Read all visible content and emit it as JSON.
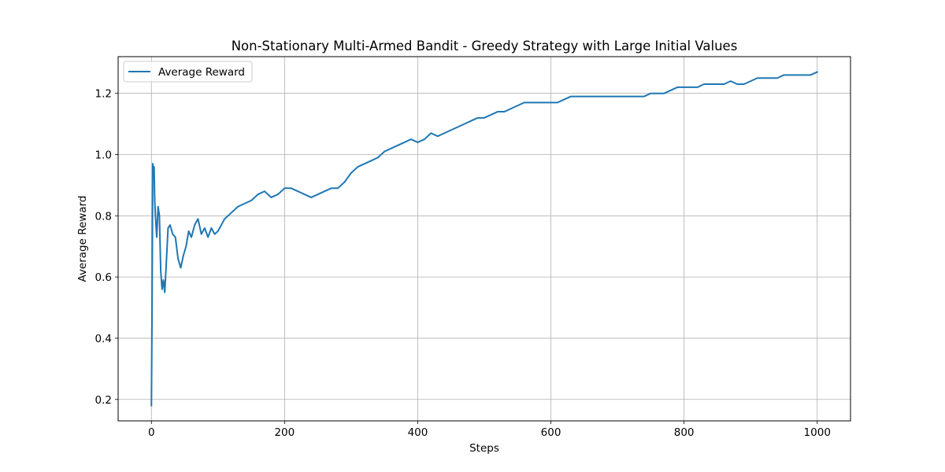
{
  "chart_data": {
    "type": "line",
    "title": "Non-Stationary Multi-Armed Bandit - Greedy Strategy with Large Initial Values",
    "xlabel": "Steps",
    "ylabel": "Average Reward",
    "xlim": [
      -50,
      1050
    ],
    "ylim": [
      0.13,
      1.32
    ],
    "xticks": [
      0,
      200,
      400,
      600,
      800,
      1000
    ],
    "yticks": [
      0.2,
      0.4,
      0.6,
      0.8,
      1.0,
      1.2
    ],
    "xtick_labels": [
      "0",
      "200",
      "400",
      "600",
      "800",
      "1000"
    ],
    "ytick_labels": [
      "0.2",
      "0.4",
      "0.6",
      "0.8",
      "1.0",
      "1.2"
    ],
    "grid": true,
    "legend_position": "top-left",
    "colors": {
      "series": "#1f77b4",
      "grid": "#b0b0b0",
      "axes": "#000000"
    },
    "series": [
      {
        "name": "Average Reward",
        "x": [
          0,
          1,
          2,
          3,
          4,
          5,
          6,
          8,
          10,
          12,
          14,
          16,
          18,
          20,
          22,
          25,
          28,
          32,
          36,
          40,
          44,
          48,
          52,
          56,
          60,
          65,
          70,
          75,
          80,
          85,
          90,
          95,
          100,
          110,
          120,
          130,
          140,
          150,
          160,
          170,
          180,
          190,
          200,
          210,
          220,
          230,
          240,
          250,
          260,
          270,
          280,
          290,
          300,
          310,
          320,
          330,
          340,
          350,
          360,
          370,
          380,
          390,
          400,
          410,
          420,
          430,
          440,
          450,
          460,
          470,
          480,
          490,
          500,
          510,
          520,
          530,
          540,
          550,
          560,
          570,
          580,
          590,
          600,
          610,
          620,
          630,
          640,
          650,
          660,
          670,
          680,
          690,
          700,
          710,
          720,
          730,
          740,
          750,
          760,
          770,
          780,
          790,
          800,
          810,
          820,
          830,
          840,
          850,
          860,
          870,
          880,
          890,
          900,
          910,
          920,
          930,
          940,
          950,
          960,
          970,
          980,
          990,
          1000
        ],
        "y": [
          0.18,
          0.5,
          0.97,
          0.95,
          0.96,
          0.85,
          0.8,
          0.73,
          0.83,
          0.8,
          0.62,
          0.56,
          0.59,
          0.55,
          0.63,
          0.76,
          0.77,
          0.74,
          0.73,
          0.66,
          0.63,
          0.67,
          0.7,
          0.75,
          0.73,
          0.77,
          0.79,
          0.74,
          0.76,
          0.73,
          0.76,
          0.74,
          0.75,
          0.79,
          0.81,
          0.83,
          0.84,
          0.85,
          0.87,
          0.88,
          0.86,
          0.87,
          0.89,
          0.89,
          0.88,
          0.87,
          0.86,
          0.87,
          0.88,
          0.89,
          0.89,
          0.91,
          0.94,
          0.96,
          0.97,
          0.98,
          0.99,
          1.01,
          1.02,
          1.03,
          1.04,
          1.05,
          1.04,
          1.05,
          1.07,
          1.06,
          1.07,
          1.08,
          1.09,
          1.1,
          1.11,
          1.12,
          1.12,
          1.13,
          1.14,
          1.14,
          1.15,
          1.16,
          1.17,
          1.17,
          1.17,
          1.17,
          1.17,
          1.17,
          1.18,
          1.19,
          1.19,
          1.19,
          1.19,
          1.19,
          1.19,
          1.19,
          1.19,
          1.19,
          1.19,
          1.19,
          1.19,
          1.2,
          1.2,
          1.2,
          1.21,
          1.22,
          1.22,
          1.22,
          1.22,
          1.23,
          1.23,
          1.23,
          1.23,
          1.24,
          1.23,
          1.23,
          1.24,
          1.25,
          1.25,
          1.25,
          1.25,
          1.26,
          1.26,
          1.26,
          1.26,
          1.26,
          1.27
        ]
      }
    ]
  }
}
